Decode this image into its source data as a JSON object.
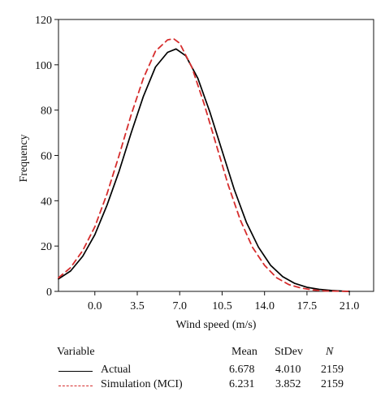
{
  "chart_data": {
    "type": "line",
    "title": "",
    "xlabel": "Wind speed (m/s)",
    "ylabel": "Frequency",
    "xlim": [
      -3.0,
      23.0
    ],
    "ylim": [
      0,
      120
    ],
    "xticks": [
      0.0,
      3.5,
      7.0,
      10.5,
      14.0,
      17.5,
      21.0
    ],
    "xtick_labels": [
      "0.0",
      "3.5",
      "7.0",
      "10.5",
      "14.0",
      "17.5",
      "21.0"
    ],
    "yticks": [
      0,
      20,
      40,
      60,
      80,
      100,
      120
    ],
    "ytick_labels": [
      "0",
      "20",
      "40",
      "60",
      "80",
      "100",
      "120"
    ],
    "grid": false,
    "legend_position": "bottom",
    "series": [
      {
        "name": "Actual",
        "color": "#000000",
        "dash": "solid",
        "x": [
          -3.0,
          -2.0,
          -1.0,
          0.0,
          1.0,
          2.0,
          3.0,
          4.0,
          5.0,
          6.0,
          6.7,
          7.5,
          8.5,
          9.5,
          10.5,
          11.5,
          12.5,
          13.5,
          14.5,
          15.5,
          16.5,
          17.5,
          18.5,
          19.5,
          20.5,
          21.0
        ],
        "y": [
          5.5,
          9.0,
          15.5,
          25.0,
          38.0,
          53.0,
          70.0,
          86.0,
          99.0,
          105.5,
          107.0,
          104.0,
          94.0,
          79.0,
          62.0,
          45.0,
          30.5,
          19.5,
          11.5,
          6.5,
          3.5,
          1.8,
          0.9,
          0.4,
          0.1,
          0.0
        ]
      },
      {
        "name": "Simulation (MCI)",
        "color": "#d62d2d",
        "dash": "dashed",
        "x": [
          -3.0,
          -2.0,
          -1.0,
          0.0,
          1.0,
          2.0,
          3.0,
          4.0,
          5.0,
          6.0,
          6.5,
          7.0,
          8.0,
          9.0,
          10.0,
          11.0,
          12.0,
          13.0,
          14.0,
          15.0,
          16.0,
          17.0,
          18.0,
          19.0,
          20.0,
          21.0
        ],
        "y": [
          6.0,
          10.5,
          18.0,
          28.5,
          43.0,
          60.0,
          78.0,
          94.0,
          106.0,
          111.0,
          111.5,
          109.5,
          99.0,
          83.0,
          65.0,
          47.0,
          31.5,
          19.5,
          11.5,
          6.0,
          3.0,
          1.5,
          0.6,
          0.2,
          0.1,
          0.0
        ]
      }
    ]
  },
  "legend": {
    "variable_header": "Variable",
    "mean_header": "Mean",
    "stdev_header": "StDev",
    "n_header": "N",
    "rows": [
      {
        "label": "Actual",
        "mean": "6.678",
        "stdev": "4.010",
        "n": "2159"
      },
      {
        "label": "Simulation (MCI)",
        "mean": "6.231",
        "stdev": "3.852",
        "n": "2159"
      }
    ]
  }
}
